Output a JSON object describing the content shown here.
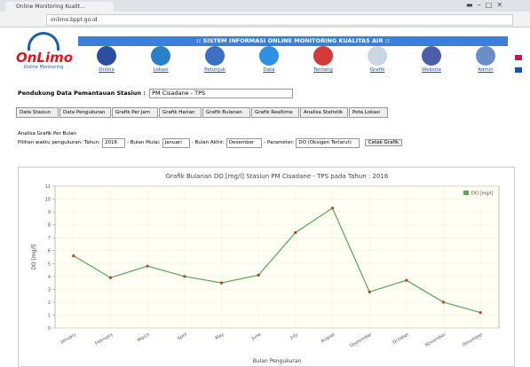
{
  "browser": {
    "tab_title": "Online Monitoring Kualit...",
    "url": "onlimo.bppt.go.id"
  },
  "header": {
    "logo": "OnLimo",
    "logo_subtitle": "Online Monitoring",
    "title": ":: SISTEM INFORMASI ONLINE MONITORING KUALITAS AIR ::"
  },
  "nav": [
    "Online",
    "Lokasi",
    "Petunjuk",
    "Data",
    "Tentang",
    "Grafik",
    "Website",
    "Admin"
  ],
  "station": {
    "label": "Pendukung Data Pemantauan Stasiun :",
    "value": "PM Cisadane - TPS"
  },
  "buttons": [
    "Data Stasiun",
    "Data Pengukuran",
    "Grafik Per Jam",
    "Grafik Harian",
    "Grafik Bulanan",
    "Grafik Realtime",
    "Analisa Statistik",
    "Peta Lokasi"
  ],
  "section_title": "Analisa Grafik Per Bulan",
  "filters": [
    {
      "label": "Pilihan waktu pengukuran: Tahun:",
      "value": "2016"
    },
    {
      "label": "- Bulan Mulai:",
      "value": "Januari"
    },
    {
      "label": "- Bulan Akhir:",
      "value": "Desember"
    },
    {
      "label": "- Parameter:",
      "value": "DO (Oksigen Terlarut)"
    }
  ],
  "filter_button": "Cetak Grafik",
  "chart_data": {
    "type": "line",
    "title": "Grafik Bulanan DO [mg/l] Stasiun PM Cisadane - TPS pada Tahun : 2016",
    "x_label": "Bulan Pengukuran",
    "y_label": "DO [mg/l]",
    "categories": [
      "January",
      "February",
      "March",
      "April",
      "May",
      "June",
      "July",
      "August",
      "September",
      "October",
      "November",
      "December"
    ],
    "series": [
      {
        "name": "DO [mg/l]",
        "color": "#5aa55a",
        "marker_color": "#c0392b",
        "values": [
          5.6,
          3.9,
          4.8,
          4.0,
          3.5,
          4.1,
          7.4,
          9.3,
          2.8,
          3.7,
          2.0,
          1.2
        ]
      }
    ],
    "ylim": [
      0,
      11
    ],
    "yticks": [
      0,
      1,
      2,
      3,
      4,
      5,
      6,
      7,
      8,
      9,
      10,
      11
    ],
    "grid": true,
    "legend": "top-right"
  }
}
